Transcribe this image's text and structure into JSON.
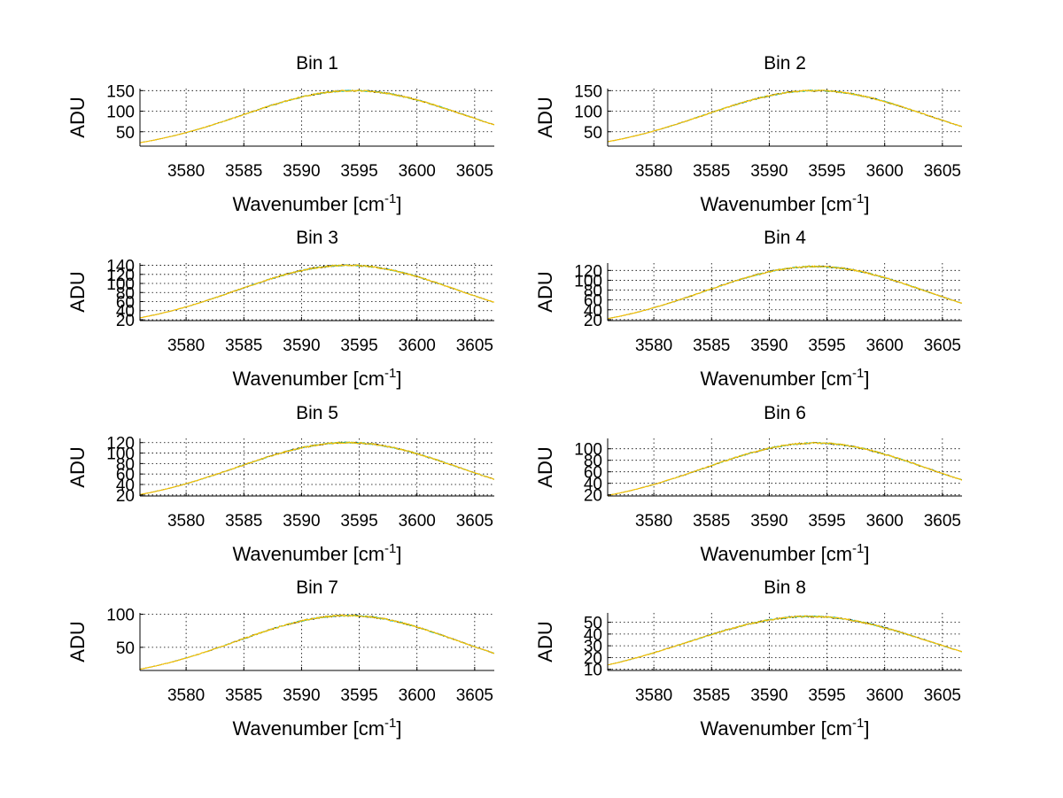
{
  "chart_data": [
    {
      "type": "line",
      "title": "Bin 1",
      "xlabel": "Wavenumber [cm",
      "xlabel_sup": "-1",
      "xlabel_end": "]",
      "ylabel": "ADU",
      "xlim": [
        3576,
        3606.7
      ],
      "ylim": [
        15,
        155
      ],
      "xticks": [
        3580,
        3585,
        3590,
        3595,
        3600,
        3605
      ],
      "yticks": [
        50,
        100,
        150
      ],
      "grid": true,
      "curve": {
        "peak": 150,
        "center": 3594.5,
        "width": 9.6
      },
      "series": [
        {
          "name": "series-dark",
          "color": "#000000"
        },
        {
          "name": "series-cyan",
          "color": "#00bfbf"
        },
        {
          "name": "series-green",
          "color": "#7fbf3f"
        },
        {
          "name": "series-yellow",
          "color": "#ffc000"
        }
      ]
    },
    {
      "type": "line",
      "title": "Bin 2",
      "xlabel": "Wavenumber [cm",
      "xlabel_sup": "-1",
      "xlabel_end": "]",
      "ylabel": "ADU",
      "xlim": [
        3576,
        3606.7
      ],
      "ylim": [
        15,
        155
      ],
      "xticks": [
        3580,
        3585,
        3590,
        3595,
        3600,
        3605
      ],
      "yticks": [
        50,
        100,
        150
      ],
      "grid": true,
      "curve": {
        "peak": 150,
        "center": 3594.0,
        "width": 9.6
      },
      "series": [
        {
          "name": "series-dark",
          "color": "#000000"
        },
        {
          "name": "series-cyan",
          "color": "#00bfbf"
        },
        {
          "name": "series-green",
          "color": "#7fbf3f"
        },
        {
          "name": "series-yellow",
          "color": "#ffc000"
        }
      ]
    },
    {
      "type": "line",
      "title": "Bin 3",
      "xlabel": "Wavenumber [cm",
      "xlabel_sup": "-1",
      "xlabel_end": "]",
      "ylabel": "ADU",
      "xlim": [
        3576,
        3606.7
      ],
      "ylim": [
        18,
        145
      ],
      "xticks": [
        3580,
        3585,
        3590,
        3595,
        3600,
        3605
      ],
      "yticks": [
        20,
        40,
        60,
        80,
        100,
        120,
        140
      ],
      "ytick_labels": [
        "20",
        "40",
        "60",
        "80",
        "100",
        "120",
        "140"
      ],
      "grid": true,
      "curve": {
        "peak": 140,
        "center": 3594.0,
        "width": 9.6
      },
      "series": [
        {
          "name": "series-dark",
          "color": "#000000"
        },
        {
          "name": "series-cyan",
          "color": "#00bfbf"
        },
        {
          "name": "series-green",
          "color": "#7fbf3f"
        },
        {
          "name": "series-yellow",
          "color": "#ffc000"
        }
      ]
    },
    {
      "type": "line",
      "title": "Bin 4",
      "xlabel": "Wavenumber [cm",
      "xlabel_sup": "-1",
      "xlabel_end": "]",
      "ylabel": "ADU",
      "xlim": [
        3576,
        3606.7
      ],
      "ylim": [
        18,
        135
      ],
      "xticks": [
        3580,
        3585,
        3590,
        3595,
        3600,
        3605
      ],
      "yticks": [
        20,
        40,
        60,
        80,
        100,
        120
      ],
      "ytick_labels": [
        "20",
        "40",
        "60",
        "80",
        "100",
        "120"
      ],
      "grid": true,
      "curve": {
        "peak": 128,
        "center": 3594.0,
        "width": 9.6
      },
      "series": [
        {
          "name": "series-dark",
          "color": "#000000"
        },
        {
          "name": "series-cyan",
          "color": "#00bfbf"
        },
        {
          "name": "series-green",
          "color": "#7fbf3f"
        },
        {
          "name": "series-yellow",
          "color": "#ffc000"
        }
      ]
    },
    {
      "type": "line",
      "title": "Bin 5",
      "xlabel": "Wavenumber [cm",
      "xlabel_sup": "-1",
      "xlabel_end": "]",
      "ylabel": "ADU",
      "xlim": [
        3576,
        3606.7
      ],
      "ylim": [
        18,
        128
      ],
      "xticks": [
        3580,
        3585,
        3590,
        3595,
        3600,
        3605
      ],
      "yticks": [
        20,
        40,
        60,
        80,
        100,
        120
      ],
      "ytick_labels": [
        "20",
        "40",
        "60",
        "80",
        "100",
        "120"
      ],
      "grid": true,
      "curve": {
        "peak": 120,
        "center": 3594.0,
        "width": 9.6
      },
      "series": [
        {
          "name": "series-dark",
          "color": "#000000"
        },
        {
          "name": "series-cyan",
          "color": "#00bfbf"
        },
        {
          "name": "series-green",
          "color": "#7fbf3f"
        },
        {
          "name": "series-yellow",
          "color": "#ffc000"
        }
      ]
    },
    {
      "type": "line",
      "title": "Bin 6",
      "xlabel": "Wavenumber [cm",
      "xlabel_sup": "-1",
      "xlabel_end": "]",
      "ylabel": "ADU",
      "xlim": [
        3576,
        3606.7
      ],
      "ylim": [
        18,
        118
      ],
      "xticks": [
        3580,
        3585,
        3590,
        3595,
        3600,
        3605
      ],
      "yticks": [
        20,
        40,
        60,
        80,
        100
      ],
      "ytick_labels": [
        "20",
        "40",
        "60",
        "80",
        "100"
      ],
      "grid": true,
      "curve": {
        "peak": 110,
        "center": 3594.0,
        "width": 9.6
      },
      "series": [
        {
          "name": "series-dark",
          "color": "#000000"
        },
        {
          "name": "series-cyan",
          "color": "#00bfbf"
        },
        {
          "name": "series-green",
          "color": "#7fbf3f"
        },
        {
          "name": "series-yellow",
          "color": "#ffc000"
        }
      ]
    },
    {
      "type": "line",
      "title": "Bin 7",
      "xlabel": "Wavenumber [cm",
      "xlabel_sup": "-1",
      "xlabel_end": "]",
      "ylabel": "ADU",
      "xlim": [
        3576,
        3606.7
      ],
      "ylim": [
        15,
        102
      ],
      "xticks": [
        3580,
        3585,
        3590,
        3595,
        3600,
        3605
      ],
      "yticks": [
        50,
        100
      ],
      "grid": true,
      "curve": {
        "peak": 98,
        "center": 3594.0,
        "width": 9.6
      },
      "series": [
        {
          "name": "series-dark",
          "color": "#000000"
        },
        {
          "name": "series-cyan",
          "color": "#00bfbf"
        },
        {
          "name": "series-green",
          "color": "#7fbf3f"
        },
        {
          "name": "series-yellow",
          "color": "#ffc000"
        }
      ]
    },
    {
      "type": "line",
      "title": "Bin 8",
      "xlabel": "Wavenumber [cm",
      "xlabel_sup": "-1",
      "xlabel_end": "]",
      "ylabel": "ADU",
      "xlim": [
        3576,
        3606.7
      ],
      "ylim": [
        9,
        58
      ],
      "xticks": [
        3580,
        3585,
        3590,
        3595,
        3600,
        3605
      ],
      "yticks": [
        10,
        20,
        30,
        40,
        50
      ],
      "ytick_labels": [
        "10",
        "20",
        "30",
        "40",
        "50"
      ],
      "grid": true,
      "curve": {
        "peak": 55,
        "center": 3593.5,
        "width": 10.5
      },
      "series": [
        {
          "name": "series-dark",
          "color": "#000000"
        },
        {
          "name": "series-cyan",
          "color": "#00bfbf"
        },
        {
          "name": "series-green",
          "color": "#7fbf3f"
        },
        {
          "name": "series-yellow",
          "color": "#ffc000"
        }
      ]
    }
  ]
}
